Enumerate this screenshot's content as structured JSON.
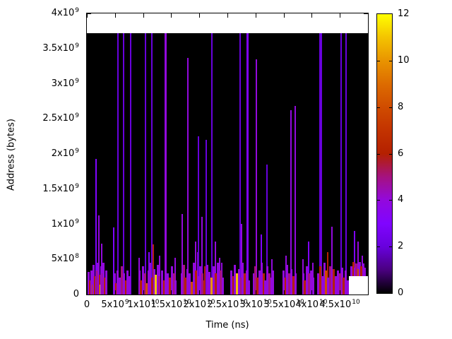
{
  "chart_data": {
    "type": "heatmap",
    "title": "",
    "xlabel": "Time (ns)",
    "ylabel": "Address (bytes)",
    "xlim_ns_e9": [
      0,
      50
    ],
    "ylim_bytes_e9": [
      0,
      4
    ],
    "grid": false,
    "legend_position": "colorbar-right",
    "x_ticks": [
      {
        "v": 0,
        "m": "0",
        "e": ""
      },
      {
        "v": 5,
        "m": "5x10",
        "e": "9"
      },
      {
        "v": 10,
        "m": "1x10",
        "e": "10"
      },
      {
        "v": 15,
        "m": "1.5x10",
        "e": "10"
      },
      {
        "v": 20,
        "m": "2x10",
        "e": "10"
      },
      {
        "v": 25,
        "m": "2.5x10",
        "e": "10"
      },
      {
        "v": 30,
        "m": "3x10",
        "e": "10"
      },
      {
        "v": 35,
        "m": "3.5x10",
        "e": "10"
      },
      {
        "v": 40,
        "m": "4x10",
        "e": "10"
      },
      {
        "v": 45,
        "m": "4.5x10",
        "e": "10"
      }
    ],
    "y_ticks": [
      {
        "v": 0,
        "m": "0",
        "e": ""
      },
      {
        "v": 0.5,
        "m": "5x10",
        "e": "8"
      },
      {
        "v": 1,
        "m": "1x10",
        "e": "9"
      },
      {
        "v": 1.5,
        "m": "1.5x10",
        "e": "9"
      },
      {
        "v": 2,
        "m": "2x10",
        "e": "9"
      },
      {
        "v": 2.5,
        "m": "2.5x10",
        "e": "9"
      },
      {
        "v": 3,
        "m": "3x10",
        "e": "9"
      },
      {
        "v": 3.5,
        "m": "3.5x10",
        "e": "9"
      },
      {
        "v": 4,
        "m": "4x10",
        "e": "9"
      }
    ],
    "colorbar": {
      "min": 0,
      "max": 12,
      "tick_values": [
        0,
        2,
        4,
        6,
        8,
        10,
        12
      ],
      "palette": [
        "#000000",
        "#4A0080",
        "#6801DD",
        "#8004FF",
        "#9309DD",
        "#A51280",
        "#B42000",
        "#C33300",
        "#D04C00",
        "#DD6C00",
        "#E99400",
        "#F4C400",
        "#FFFF00"
      ]
    },
    "data_top_e9": 3.72,
    "gap": {
      "t_from_e9": 46.6,
      "t_to_e9": 50,
      "addr_top_e9": 0.26
    },
    "spike_columns": [
      "time_e9_ns",
      "addr_top_e9_bytes",
      "value",
      "width_px",
      "base_e9_bytes"
    ],
    "spikes": [
      [
        1.63,
        1.93,
        3,
        2
      ],
      [
        2.1,
        1.13,
        4,
        2
      ],
      [
        2.6,
        0.72,
        4,
        2
      ],
      [
        4.8,
        0.95,
        3,
        2
      ],
      [
        5.5,
        3.72,
        2,
        2
      ],
      [
        6.5,
        3.72,
        2,
        2
      ],
      [
        7.75,
        3.72,
        2,
        2
      ],
      [
        9.25,
        0.52,
        4,
        2
      ],
      [
        10.4,
        3.72,
        2,
        2
      ],
      [
        11.0,
        0.6,
        3,
        2
      ],
      [
        11.6,
        3.72,
        2,
        2
      ],
      [
        11.75,
        0.71,
        6,
        2
      ],
      [
        12.9,
        0.55,
        4,
        2
      ],
      [
        13.9,
        3.72,
        4,
        3
      ],
      [
        15.75,
        0.52,
        4,
        2
      ],
      [
        17.0,
        1.15,
        4,
        2
      ],
      [
        18.0,
        3.37,
        4,
        2
      ],
      [
        19.3,
        0.75,
        4,
        2
      ],
      [
        19.75,
        0.6,
        4,
        2
      ],
      [
        19.9,
        2.25,
        2,
        2
      ],
      [
        20.5,
        1.11,
        4,
        2
      ],
      [
        21.0,
        0.4,
        6,
        2
      ],
      [
        21.25,
        2.2,
        2,
        2
      ],
      [
        22.25,
        3.72,
        2,
        2
      ],
      [
        22.9,
        0.75,
        4,
        2
      ],
      [
        23.6,
        0.52,
        4,
        2
      ],
      [
        24.0,
        0.45,
        4,
        2
      ],
      [
        27.3,
        3.72,
        2,
        2
      ],
      [
        27.55,
        1.0,
        4,
        2
      ],
      [
        28.5,
        3.72,
        3,
        3
      ],
      [
        30.1,
        3.35,
        4,
        2
      ],
      [
        31.0,
        0.85,
        3,
        2
      ],
      [
        32.0,
        1.85,
        2,
        2
      ],
      [
        32.9,
        0.5,
        4,
        2
      ],
      [
        35.4,
        0.55,
        4,
        2
      ],
      [
        36.25,
        2.62,
        4,
        2
      ],
      [
        37.1,
        2.68,
        4,
        2
      ],
      [
        38.5,
        0.5,
        4,
        2
      ],
      [
        39.4,
        0.75,
        3,
        2
      ],
      [
        40.25,
        0.45,
        4,
        2
      ],
      [
        41.6,
        3.72,
        2,
        4
      ],
      [
        42.9,
        0.6,
        6,
        2
      ],
      [
        43.6,
        0.96,
        4,
        2
      ],
      [
        45.25,
        3.72,
        2,
        2
      ],
      [
        46.1,
        3.72,
        2,
        2
      ],
      [
        47.6,
        0.9,
        3,
        2,
        0.26
      ],
      [
        48.25,
        0.75,
        4,
        2,
        0.26
      ],
      [
        49.0,
        0.55,
        4,
        2,
        0.26
      ]
    ],
    "band_columns": [
      "time_e9_ns",
      "height_e9_bytes",
      "value",
      "base_e9_bytes"
    ],
    "band": [
      [
        0.2,
        0.32,
        4
      ],
      [
        0.45,
        0.2,
        6
      ],
      [
        0.7,
        0.34,
        4
      ],
      [
        0.95,
        0.14,
        8
      ],
      [
        1.15,
        0.42,
        4
      ],
      [
        1.4,
        0.26,
        6
      ],
      [
        1.6,
        0.45,
        3
      ],
      [
        1.8,
        0.34,
        5
      ],
      [
        2.0,
        0.45,
        4
      ],
      [
        2.2,
        0.28,
        6
      ],
      [
        2.4,
        0.14,
        11
      ],
      [
        2.55,
        0.4,
        4
      ],
      [
        2.75,
        0.3,
        5
      ],
      [
        2.95,
        0.45,
        4
      ],
      [
        3.15,
        0.24,
        6
      ],
      [
        3.35,
        0.34,
        4
      ],
      [
        4.85,
        0.3,
        4
      ],
      [
        5.1,
        0.16,
        6
      ],
      [
        5.4,
        0.34,
        4
      ],
      [
        5.8,
        0.24,
        4
      ],
      [
        6.15,
        0.4,
        5
      ],
      [
        6.5,
        0.3,
        4
      ],
      [
        6.85,
        0.2,
        6
      ],
      [
        7.15,
        0.34,
        4
      ],
      [
        7.55,
        0.26,
        4
      ],
      [
        9.3,
        0.34,
        4
      ],
      [
        9.6,
        0.2,
        6
      ],
      [
        9.9,
        0.4,
        4
      ],
      [
        10.25,
        0.3,
        5
      ],
      [
        10.6,
        0.16,
        8
      ],
      [
        10.9,
        0.34,
        4
      ],
      [
        11.2,
        0.45,
        4
      ],
      [
        11.55,
        0.24,
        6
      ],
      [
        11.9,
        0.36,
        4
      ],
      [
        12.2,
        0.28,
        11
      ],
      [
        12.5,
        0.42,
        4
      ],
      [
        12.8,
        0.26,
        5
      ],
      [
        13.3,
        0.34,
        4
      ],
      [
        13.65,
        0.2,
        6
      ],
      [
        14.0,
        0.42,
        4
      ],
      [
        14.35,
        0.3,
        4
      ],
      [
        14.7,
        0.24,
        6
      ],
      [
        15.05,
        0.4,
        4
      ],
      [
        15.4,
        0.3,
        5
      ],
      [
        15.75,
        0.2,
        4
      ],
      [
        16.8,
        0.3,
        4
      ],
      [
        17.15,
        0.42,
        5
      ],
      [
        17.5,
        0.24,
        6
      ],
      [
        17.85,
        0.36,
        4
      ],
      [
        18.2,
        0.3,
        4
      ],
      [
        18.55,
        0.18,
        8
      ],
      [
        18.95,
        0.45,
        4
      ],
      [
        19.3,
        0.34,
        6
      ],
      [
        19.7,
        0.26,
        4
      ],
      [
        20.1,
        0.4,
        4
      ],
      [
        20.5,
        0.3,
        5
      ],
      [
        20.9,
        0.2,
        6
      ],
      [
        21.3,
        0.42,
        4
      ],
      [
        21.7,
        0.32,
        4
      ],
      [
        22.1,
        0.24,
        10
      ],
      [
        22.5,
        0.4,
        4
      ],
      [
        22.9,
        0.3,
        6
      ],
      [
        23.3,
        0.45,
        4
      ],
      [
        23.7,
        0.34,
        5
      ],
      [
        24.1,
        0.24,
        4
      ],
      [
        25.6,
        0.34,
        4
      ],
      [
        25.95,
        0.26,
        6
      ],
      [
        26.3,
        0.42,
        4
      ],
      [
        26.65,
        0.3,
        11
      ],
      [
        27.0,
        0.36,
        4
      ],
      [
        27.35,
        0.24,
        5
      ],
      [
        27.7,
        0.45,
        4
      ],
      [
        28.05,
        0.3,
        6
      ],
      [
        28.4,
        0.34,
        4
      ],
      [
        28.75,
        0.2,
        4
      ],
      [
        29.6,
        0.3,
        4
      ],
      [
        29.95,
        0.4,
        5
      ],
      [
        30.3,
        0.24,
        6
      ],
      [
        30.65,
        0.34,
        4
      ],
      [
        31.0,
        0.45,
        4
      ],
      [
        31.35,
        0.3,
        6
      ],
      [
        31.7,
        0.2,
        4
      ],
      [
        32.05,
        0.4,
        4
      ],
      [
        32.4,
        0.3,
        5
      ],
      [
        32.75,
        0.24,
        4
      ],
      [
        33.1,
        0.34,
        4
      ],
      [
        34.9,
        0.34,
        4
      ],
      [
        35.25,
        0.24,
        6
      ],
      [
        35.6,
        0.42,
        4
      ],
      [
        35.95,
        0.3,
        5
      ],
      [
        36.3,
        0.36,
        4
      ],
      [
        36.65,
        0.26,
        6
      ],
      [
        37.0,
        0.3,
        4
      ],
      [
        38.4,
        0.3,
        4
      ],
      [
        38.75,
        0.2,
        6
      ],
      [
        39.1,
        0.4,
        4
      ],
      [
        39.45,
        0.3,
        5
      ],
      [
        39.8,
        0.34,
        4
      ],
      [
        40.15,
        0.24,
        4
      ],
      [
        41.1,
        0.3,
        4
      ],
      [
        41.45,
        0.4,
        6
      ],
      [
        41.8,
        0.26,
        4
      ],
      [
        42.15,
        0.45,
        4
      ],
      [
        42.5,
        0.34,
        8
      ],
      [
        42.85,
        0.24,
        4
      ],
      [
        43.2,
        0.4,
        5
      ],
      [
        43.55,
        0.3,
        4
      ],
      [
        43.9,
        0.36,
        6
      ],
      [
        44.25,
        0.26,
        4
      ],
      [
        44.6,
        0.34,
        4
      ],
      [
        44.95,
        0.3,
        5
      ],
      [
        45.3,
        0.38,
        4
      ],
      [
        45.65,
        0.24,
        6
      ],
      [
        46.0,
        0.34,
        4
      ],
      [
        46.35,
        0.2,
        4
      ],
      [
        47.0,
        0.14,
        4,
        0.26
      ],
      [
        47.3,
        0.2,
        6,
        0.26
      ],
      [
        47.6,
        0.12,
        4,
        0.26
      ],
      [
        47.9,
        0.18,
        5,
        0.26
      ],
      [
        48.2,
        0.1,
        8,
        0.26
      ],
      [
        48.5,
        0.2,
        4,
        0.26
      ],
      [
        48.8,
        0.14,
        6,
        0.26
      ],
      [
        49.1,
        0.18,
        4,
        0.26
      ],
      [
        49.4,
        0.12,
        4,
        0.26
      ]
    ]
  }
}
